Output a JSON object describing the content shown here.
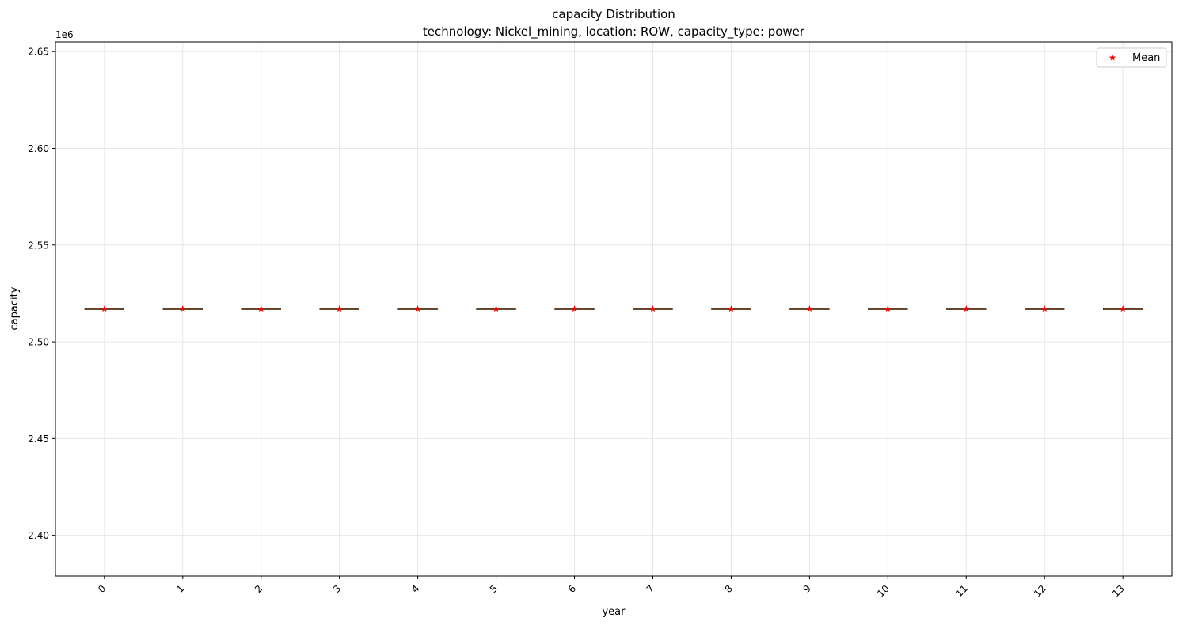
{
  "chart_data": {
    "type": "box",
    "title": "capacity Distribution",
    "subtitle": "technology: Nickel_mining, location: ROW, capacity_type: power",
    "xlabel": "year",
    "ylabel": "capacity",
    "y_offset_label": "1e6",
    "x_tick_labels": [
      "0",
      "1",
      "2",
      "3",
      "4",
      "5",
      "6",
      "7",
      "8",
      "9",
      "10",
      "11",
      "12",
      "13"
    ],
    "y_tick_values": [
      2.4,
      2.45,
      2.5,
      2.55,
      2.6,
      2.65
    ],
    "y_tick_labels": [
      "2.40",
      "2.45",
      "2.50",
      "2.55",
      "2.60",
      "2.65"
    ],
    "ylim": [
      2.379,
      2.655
    ],
    "grid": true,
    "legend": {
      "placement": "top-right",
      "entries": [
        {
          "label": "Mean",
          "marker": "star",
          "color": "#ff0000"
        }
      ]
    },
    "series": [
      {
        "x": [
          0,
          1,
          2,
          3,
          4,
          5,
          6,
          7,
          8,
          9,
          10,
          11,
          12,
          13
        ],
        "median": [
          2.517,
          2.517,
          2.517,
          2.517,
          2.517,
          2.517,
          2.517,
          2.517,
          2.517,
          2.517,
          2.517,
          2.517,
          2.517,
          2.517
        ],
        "mean": [
          2.517,
          2.517,
          2.517,
          2.517,
          2.517,
          2.517,
          2.517,
          2.517,
          2.517,
          2.517,
          2.517,
          2.517,
          2.517,
          2.517
        ]
      }
    ],
    "colors": {
      "box_edge": "#000000",
      "median": "#ff7f0e",
      "mean": "#ff0000",
      "grid": "#e6e6e6"
    }
  }
}
